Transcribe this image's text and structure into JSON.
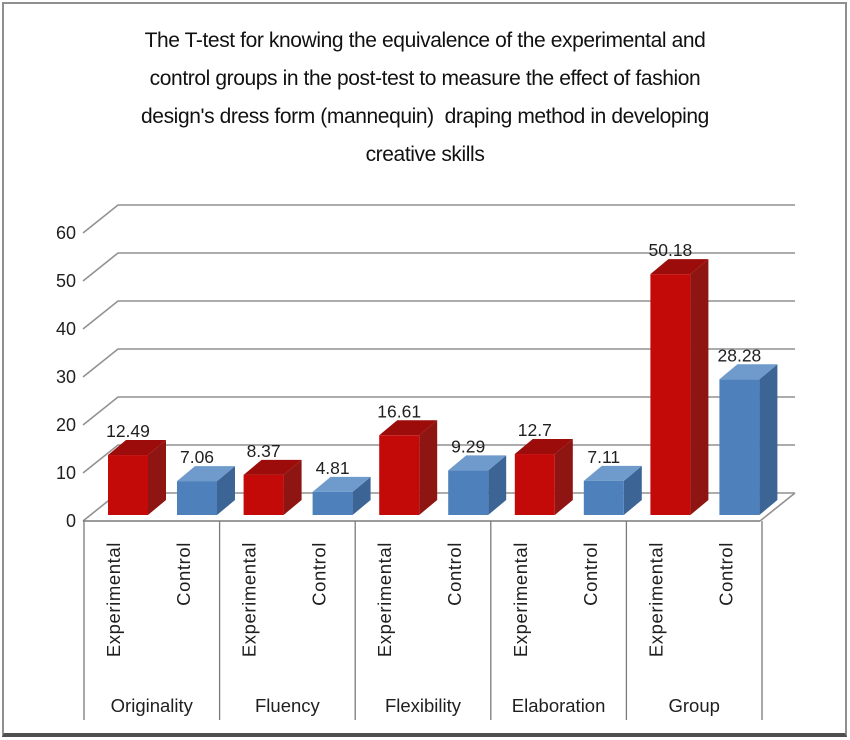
{
  "title_lines": [
    "The T-test for knowing the equivalence of the experimental and",
    "control groups in the post-test to measure the effect of fashion",
    "design's dress form (mannequin)  draping method in developing",
    "creative skills"
  ],
  "chart_data": {
    "type": "bar",
    "projection": "3d-clustered-column",
    "title": "The T-test for knowing the equivalence of the experimental and control groups in the post-test to measure the effect of fashion design's dress form (mannequin) draping method in developing creative skills",
    "categories": [
      "Originality",
      "Fluency",
      "Flexibility",
      "Elaboration",
      "Group"
    ],
    "series": [
      {
        "name": "Experimental",
        "values": [
          12.49,
          8.37,
          16.61,
          12.7,
          50.18
        ],
        "colors": {
          "front": "#C40909",
          "top": "#9B0C0B",
          "side": "#8E1512"
        }
      },
      {
        "name": "Control",
        "values": [
          7.06,
          4.81,
          9.29,
          7.11,
          28.28
        ],
        "colors": {
          "front": "#4E80BC",
          "top": "#6F9BCC",
          "side": "#3C6596"
        }
      }
    ],
    "xlabel": "",
    "ylabel": "",
    "ylim": [
      0,
      60
    ],
    "yticks": [
      0,
      10,
      20,
      30,
      40,
      50,
      60
    ],
    "grid": true,
    "legend": "none",
    "data_labels": true,
    "text_color": "#1f1f1f",
    "grid_color": "#919191",
    "axis_color": "#7a7a7a"
  }
}
